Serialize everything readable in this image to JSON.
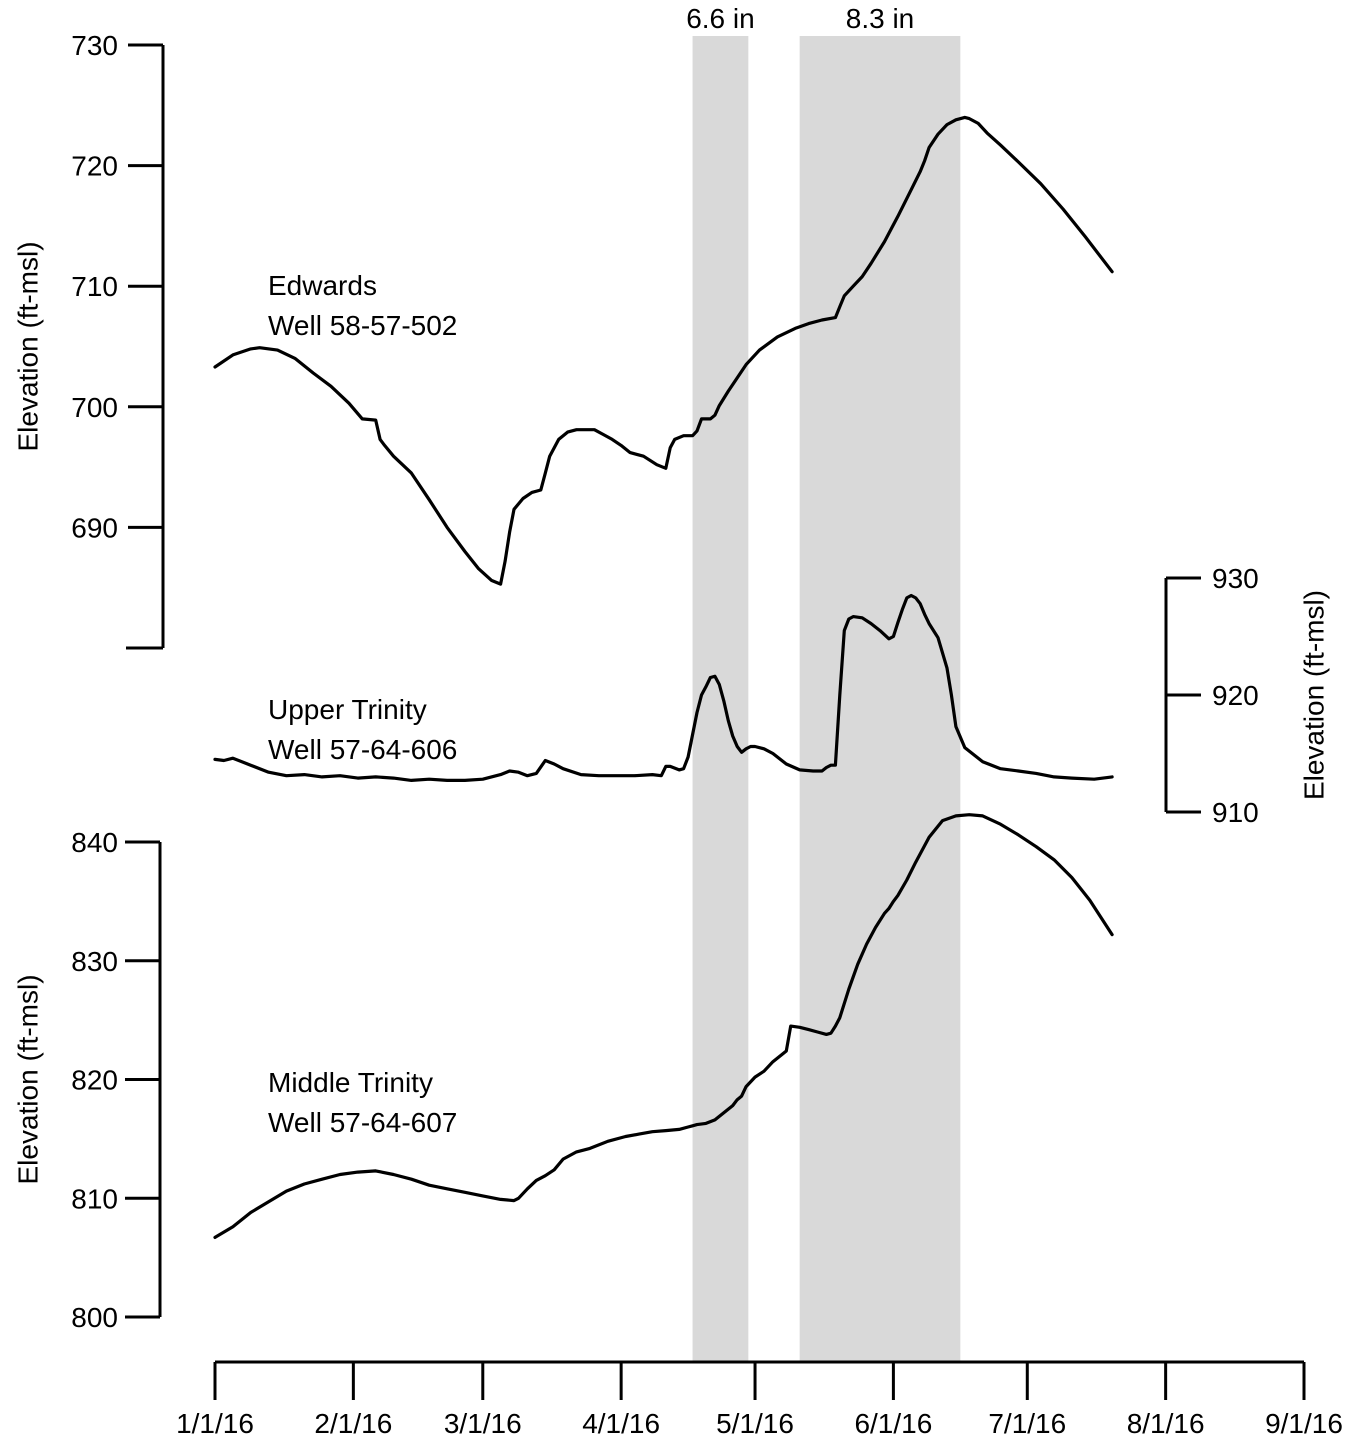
{
  "chart_data": {
    "type": "line",
    "x_axis": {
      "tick_labels": [
        "1/1/16",
        "2/1/16",
        "3/1/16",
        "4/1/16",
        "5/1/16",
        "6/1/16",
        "7/1/16",
        "8/1/16",
        "9/1/16"
      ],
      "tick_values": [
        0,
        31,
        60,
        91,
        121,
        152,
        182,
        213,
        244
      ],
      "range": [
        0,
        244
      ],
      "unit": "days since 1/1/16"
    },
    "rain_periods": [
      {
        "label": "6.6 in",
        "start_day": 107,
        "end_day": 119.5
      },
      {
        "label": "8.3 in",
        "start_day": 131,
        "end_day": 167
      }
    ],
    "axes": {
      "edwards": {
        "title": "Elevation (ft-msl)",
        "ticks": [
          730,
          720,
          710,
          700,
          690
        ],
        "range": [
          680,
          730
        ],
        "side": "left"
      },
      "upper": {
        "title": "Elevation (ft-msl)",
        "ticks": [
          930,
          920,
          910
        ],
        "range": [
          910,
          930
        ],
        "side": "right"
      },
      "middle": {
        "title": "Elevation (ft-msl)",
        "ticks": [
          840,
          830,
          820,
          810,
          800
        ],
        "range": [
          800,
          840
        ],
        "side": "left"
      }
    },
    "series": [
      {
        "name": "Edwards",
        "label_line1": "Edwards",
        "label_line2": "Well 58-57-502",
        "axis": "edwards",
        "x": [
          0,
          4,
          8,
          10,
          14,
          18,
          22,
          26,
          30,
          33,
          36,
          37,
          38,
          40,
          44,
          48,
          52,
          56,
          59,
          62,
          64,
          65,
          66,
          67,
          69,
          71,
          73,
          74,
          75,
          77,
          79,
          81,
          83,
          85,
          87,
          89,
          91,
          93,
          96,
          99,
          101,
          102,
          103,
          105,
          107,
          108,
          109,
          111,
          112,
          113,
          115,
          117,
          119,
          122,
          126,
          130,
          133,
          136,
          139,
          140,
          141,
          143,
          145,
          147,
          150,
          153,
          156,
          158,
          159,
          160,
          162,
          164,
          166,
          168,
          169,
          171,
          173,
          176,
          180,
          185,
          190,
          195,
          201
        ],
        "y": [
          703.3,
          704.3,
          704.8,
          704.9,
          704.7,
          704.0,
          702.8,
          701.7,
          700.3,
          699.0,
          698.9,
          697.3,
          696.8,
          695.9,
          694.5,
          692.3,
          690.0,
          688.0,
          686.6,
          685.6,
          685.3,
          687.2,
          689.6,
          691.5,
          692.4,
          692.9,
          693.1,
          694.5,
          695.9,
          697.3,
          697.9,
          698.1,
          698.1,
          698.1,
          697.7,
          697.3,
          696.8,
          696.2,
          695.9,
          695.2,
          694.9,
          696.6,
          697.3,
          697.6,
          697.6,
          698.0,
          699.0,
          699.0,
          699.3,
          700.1,
          701.3,
          702.4,
          703.5,
          704.7,
          705.8,
          706.5,
          706.9,
          707.2,
          707.4,
          708.3,
          709.2,
          710.0,
          710.8,
          711.9,
          713.7,
          715.8,
          718.0,
          719.5,
          720.4,
          721.5,
          722.6,
          723.4,
          723.8,
          724.0,
          723.9,
          723.5,
          722.7,
          721.7,
          720.3,
          718.5,
          716.4,
          714.1,
          711.2
        ]
      },
      {
        "name": "Upper Trinity",
        "label_line1": "Upper Trinity",
        "label_line2": "Well 57-64-606",
        "axis": "upper",
        "x": [
          0,
          2,
          4,
          8,
          12,
          16,
          20,
          24,
          28,
          32,
          36,
          40,
          44,
          48,
          52,
          56,
          60,
          64,
          66,
          68,
          70,
          72,
          74,
          76,
          78,
          82,
          86,
          90,
          94,
          98,
          100,
          101,
          102,
          104,
          105,
          106,
          108,
          109,
          110,
          111,
          112,
          113,
          114,
          115,
          116,
          117,
          118,
          119,
          120,
          121,
          123,
          125,
          128,
          131,
          134,
          136,
          137,
          138,
          139,
          140,
          141,
          142,
          143,
          145,
          147,
          149,
          151,
          152,
          153,
          154,
          155,
          156,
          157,
          158,
          159,
          160,
          162,
          164,
          165,
          166,
          168,
          172,
          176,
          180,
          184,
          188,
          192,
          197,
          201
        ],
        "y": [
          914.5,
          914.4,
          914.6,
          914.0,
          913.4,
          913.1,
          913.2,
          913.0,
          913.1,
          912.9,
          913.0,
          912.9,
          912.7,
          912.8,
          912.7,
          912.7,
          912.8,
          913.2,
          913.5,
          913.4,
          913.1,
          913.3,
          914.4,
          914.1,
          913.7,
          913.2,
          913.1,
          913.1,
          913.1,
          913.2,
          913.1,
          913.9,
          913.9,
          913.6,
          913.7,
          914.7,
          918.5,
          920.0,
          920.7,
          921.5,
          921.6,
          920.9,
          919.5,
          917.8,
          916.5,
          915.6,
          915.1,
          915.4,
          915.6,
          915.6,
          915.4,
          915.0,
          914.1,
          913.6,
          913.5,
          913.5,
          913.8,
          914.0,
          914.0,
          920.0,
          925.5,
          926.5,
          926.7,
          926.6,
          926.1,
          925.5,
          924.8,
          925.0,
          926.2,
          927.3,
          928.3,
          928.5,
          928.3,
          927.8,
          926.9,
          926.1,
          924.9,
          922.3,
          920.0,
          917.3,
          915.5,
          914.3,
          913.7,
          913.5,
          913.3,
          913.0,
          912.9,
          912.8,
          913.0
        ]
      },
      {
        "name": "Middle Trinity",
        "label_line1": "Middle Trinity",
        "label_line2": "Well 57-64-607",
        "axis": "middle",
        "x": [
          0,
          4,
          8,
          12,
          16,
          20,
          24,
          28,
          32,
          36,
          40,
          44,
          48,
          52,
          56,
          60,
          64,
          67,
          68,
          70,
          72,
          74,
          76,
          78,
          81,
          84,
          88,
          92,
          95,
          98,
          101,
          104,
          106,
          107,
          108,
          110,
          112,
          114,
          116,
          117,
          118,
          119,
          121,
          123,
          125,
          127,
          128,
          129,
          131,
          133,
          135,
          137,
          138,
          139,
          140,
          142,
          144,
          146,
          148,
          150,
          151,
          152,
          153,
          155,
          157,
          160,
          163,
          166,
          169,
          172,
          176,
          180,
          184,
          188,
          192,
          196,
          201
        ],
        "y": [
          806.7,
          807.6,
          808.8,
          809.7,
          810.6,
          811.2,
          811.6,
          812.0,
          812.2,
          812.3,
          812.0,
          811.6,
          811.1,
          810.8,
          810.5,
          810.2,
          809.9,
          809.8,
          810.0,
          810.8,
          811.5,
          811.9,
          812.4,
          813.3,
          813.9,
          814.2,
          814.8,
          815.2,
          815.4,
          815.6,
          815.7,
          815.8,
          816.0,
          816.1,
          816.2,
          816.3,
          816.6,
          817.2,
          817.8,
          818.3,
          818.6,
          819.4,
          820.2,
          820.7,
          821.5,
          822.1,
          822.4,
          824.5,
          824.4,
          824.2,
          824.0,
          823.8,
          823.9,
          824.5,
          825.2,
          827.6,
          829.7,
          831.4,
          832.8,
          834.0,
          834.4,
          835.0,
          835.5,
          836.8,
          838.3,
          840.4,
          841.8,
          842.2,
          842.3,
          842.2,
          841.5,
          840.6,
          839.6,
          838.5,
          837.0,
          835.1,
          832.2
        ]
      }
    ]
  }
}
